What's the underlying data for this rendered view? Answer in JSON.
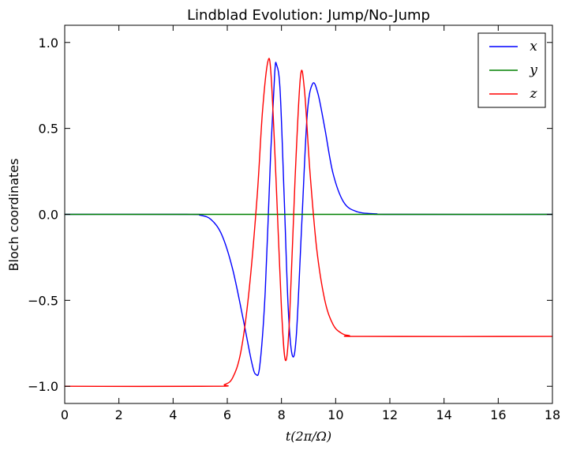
{
  "chart_data": {
    "type": "line",
    "title": "Lindblad Evolution: Jump/No-Jump",
    "xlabel": "t(2π/Ω)",
    "ylabel": "Bloch coordinates",
    "xlim": [
      0,
      18
    ],
    "ylim": [
      -1.1,
      1.1
    ],
    "xticks": [
      0,
      2,
      4,
      6,
      8,
      10,
      12,
      14,
      16,
      18
    ],
    "xtick_labels": [
      "0",
      "2",
      "4",
      "6",
      "8",
      "10",
      "12",
      "14",
      "16",
      "18"
    ],
    "yticks": [
      -1.0,
      -0.5,
      0.0,
      0.5,
      1.0
    ],
    "ytick_labels": [
      "−1.0",
      "−0.5",
      "0.0",
      "0.5",
      "1.0"
    ],
    "grid": false,
    "legend_position": "top-right",
    "series": [
      {
        "name": "x",
        "color": "#0000ff",
        "points": [
          [
            0,
            0
          ],
          [
            4.5,
            0
          ],
          [
            5,
            -0.005
          ],
          [
            5.4,
            -0.03
          ],
          [
            5.8,
            -0.12
          ],
          [
            6.2,
            -0.32
          ],
          [
            6.6,
            -0.62
          ],
          [
            6.9,
            -0.86
          ],
          [
            7.05,
            -0.93
          ],
          [
            7.2,
            -0.88
          ],
          [
            7.4,
            -0.45
          ],
          [
            7.6,
            0.35
          ],
          [
            7.75,
            0.82
          ],
          [
            7.82,
            0.87
          ],
          [
            7.95,
            0.72
          ],
          [
            8.1,
            0.1
          ],
          [
            8.25,
            -0.55
          ],
          [
            8.4,
            -0.82
          ],
          [
            8.55,
            -0.7
          ],
          [
            8.75,
            -0.05
          ],
          [
            8.95,
            0.58
          ],
          [
            9.15,
            0.76
          ],
          [
            9.35,
            0.7
          ],
          [
            9.6,
            0.5
          ],
          [
            9.9,
            0.24
          ],
          [
            10.3,
            0.07
          ],
          [
            10.8,
            0.015
          ],
          [
            11.5,
            0.003
          ],
          [
            12,
            0
          ],
          [
            18,
            0
          ]
        ]
      },
      {
        "name": "y",
        "color": "#008000",
        "points": [
          [
            0,
            0
          ],
          [
            18,
            0
          ]
        ]
      },
      {
        "name": "z",
        "color": "#ff0000",
        "points": [
          [
            0,
            -1.0
          ],
          [
            5.5,
            -1.0
          ],
          [
            5.9,
            -0.99
          ],
          [
            6.2,
            -0.95
          ],
          [
            6.5,
            -0.8
          ],
          [
            6.8,
            -0.45
          ],
          [
            7.1,
            0.1
          ],
          [
            7.3,
            0.6
          ],
          [
            7.5,
            0.89
          ],
          [
            7.62,
            0.8
          ],
          [
            7.8,
            0.2
          ],
          [
            8.0,
            -0.55
          ],
          [
            8.15,
            -0.85
          ],
          [
            8.3,
            -0.6
          ],
          [
            8.5,
            0.2
          ],
          [
            8.7,
            0.8
          ],
          [
            8.85,
            0.72
          ],
          [
            9.05,
            0.25
          ],
          [
            9.3,
            -0.2
          ],
          [
            9.6,
            -0.5
          ],
          [
            9.9,
            -0.64
          ],
          [
            10.2,
            -0.69
          ],
          [
            10.5,
            -0.705
          ],
          [
            11,
            -0.71
          ],
          [
            18,
            -0.71
          ]
        ]
      }
    ]
  }
}
